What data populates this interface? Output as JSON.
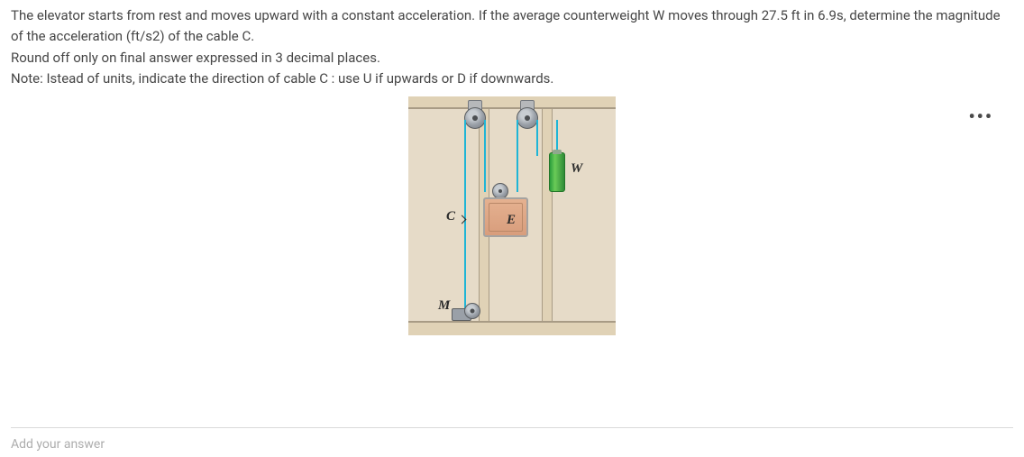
{
  "question": {
    "line1": "The elevator starts from rest and moves upward with a constant acceleration. If the average counterweight W moves through 27.5 ft in 6.9s, determine the magnitude of the acceleration (ft/s2) of the cable C.",
    "line2": "Round off only on final answer expressed in 3 decimal places.",
    "line3": "Note: Istead of units, indicate the direction of cable C : use U if upwards or D if downwards."
  },
  "menu_dots": "•••",
  "figure": {
    "labels": {
      "C": "C",
      "E": "E",
      "W": "W",
      "M": "M"
    },
    "colors": {
      "background": "#e6dbc8",
      "beam": "#e0d2b6",
      "beam_border": "#a89b85",
      "cable": "#1fb5d6",
      "elevator_fill": "#e5b190",
      "counterweight_fill": "#2a9d3c",
      "metal": "#9aa0a8"
    }
  },
  "answer_prompt": "Add your answer"
}
